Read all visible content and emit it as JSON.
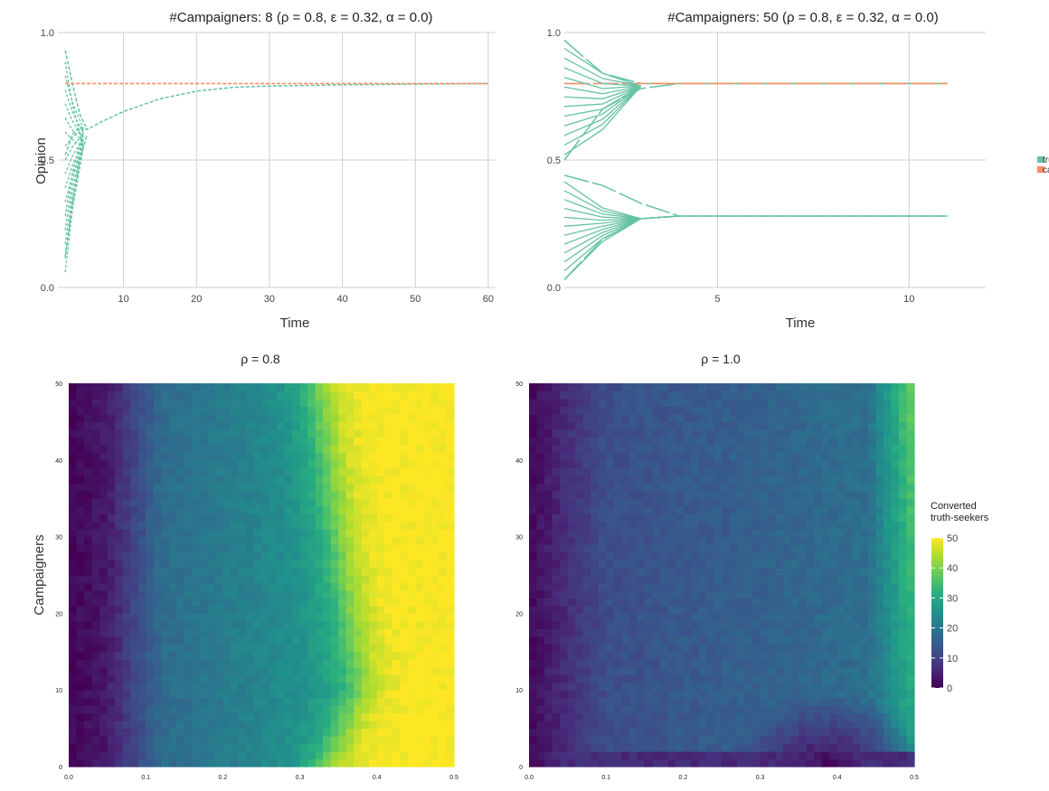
{
  "colors": {
    "truth": "#66c2a5",
    "campaigner": "#fc8d62",
    "grid": "#d0d0d0"
  },
  "chart_data": [
    {
      "type": "line",
      "title": "#Campaigners: 8 (ρ = 0.8, ε = 0.32, α = 0.0)",
      "xlabel": "Time",
      "ylabel": "Opinion",
      "xlim": [
        1,
        61
      ],
      "ylim": [
        0,
        1
      ],
      "xticks": [
        "10",
        "20",
        "30",
        "40",
        "50",
        "60"
      ],
      "yticks": [
        "0.0",
        "0.5",
        "1.0"
      ],
      "grid": true,
      "series": [
        {
          "group": "truth",
          "x": [
            2,
            3,
            4,
            5,
            7,
            10,
            15,
            20,
            25,
            30,
            40,
            50,
            60
          ],
          "y": [
            0.52,
            0.6,
            0.63,
            0.62,
            0.65,
            0.69,
            0.74,
            0.77,
            0.785,
            0.79,
            0.795,
            0.798,
            0.8
          ]
        },
        {
          "group": "truth",
          "x": [
            2,
            3,
            4,
            5
          ],
          "y": [
            0.93,
            0.8,
            0.68,
            0.62
          ]
        },
        {
          "group": "truth",
          "x": [
            2,
            3,
            4,
            5
          ],
          "y": [
            0.12,
            0.33,
            0.5,
            0.6
          ]
        },
        {
          "group": "campaigner",
          "x": [
            2,
            60
          ],
          "y": [
            0.8,
            0.8
          ]
        }
      ]
    },
    {
      "type": "line",
      "title": "#Campaigners: 50 (ρ = 0.8, ε = 0.32, α = 0.0)",
      "xlabel": "Time",
      "xlim": [
        1,
        12
      ],
      "ylim": [
        0,
        1
      ],
      "xticks": [
        "5",
        "10"
      ],
      "yticks": [
        "0.0",
        "0.5",
        "1.0"
      ],
      "grid": true,
      "series": [
        {
          "group": "truth",
          "x": [
            1,
            2,
            3,
            4,
            11
          ],
          "y": [
            0.97,
            0.84,
            0.8,
            0.8,
            0.8
          ]
        },
        {
          "group": "truth",
          "x": [
            1,
            2,
            3,
            4,
            11
          ],
          "y": [
            0.5,
            0.7,
            0.78,
            0.8,
            0.8
          ]
        },
        {
          "group": "truth",
          "x": [
            1,
            2,
            3,
            4,
            11
          ],
          "y": [
            0.44,
            0.4,
            0.33,
            0.28,
            0.28
          ]
        },
        {
          "group": "truth",
          "x": [
            1,
            2,
            3,
            4,
            11
          ],
          "y": [
            0.03,
            0.19,
            0.27,
            0.28,
            0.28
          ]
        },
        {
          "group": "campaigner",
          "x": [
            1,
            11
          ],
          "y": [
            0.8,
            0.8
          ]
        }
      ],
      "legend": {
        "placement": "right",
        "entries": [
          "truth",
          "camp"
        ]
      }
    },
    {
      "type": "heatmap",
      "title": "ρ = 0.8",
      "ylabel": "Campaigners",
      "xlim": [
        0,
        0.5
      ],
      "ylim": [
        0,
        50
      ],
      "xticks": [
        "0.0",
        "0.1",
        "0.2",
        "0.3",
        "0.4",
        "0.5"
      ],
      "yticks": [
        "0",
        "10",
        "20",
        "30",
        "40",
        "50"
      ]
    },
    {
      "type": "heatmap",
      "title": "ρ = 1.0",
      "xlim": [
        0,
        0.5
      ],
      "ylim": [
        0,
        50
      ],
      "xticks": [
        "0.0",
        "0.1",
        "0.2",
        "0.3",
        "0.4",
        "0.5"
      ],
      "yticks": [
        "0",
        "10",
        "20",
        "30",
        "40",
        "50"
      ],
      "colorbar": {
        "title_line1": "Converted",
        "title_line2": "truth-seekers",
        "ticks": [
          "0",
          "10",
          "20",
          "30",
          "40",
          "50"
        ],
        "range": [
          0,
          50
        ]
      }
    }
  ]
}
